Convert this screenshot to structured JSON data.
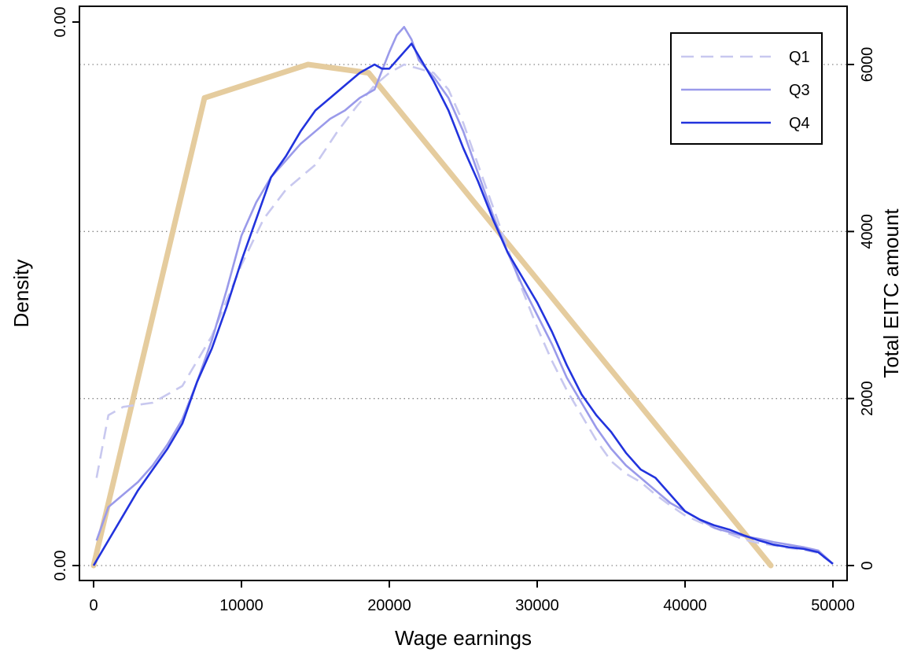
{
  "chart_data": {
    "type": "line",
    "title": "",
    "xlabel": "Wage earnings",
    "ylabel": "Density",
    "y2label": "Total EITC amount",
    "xlim": [
      -1000,
      51000
    ],
    "ylim_right": [
      -400,
      6500
    ],
    "x_ticks": [
      0,
      10000,
      20000,
      30000,
      40000,
      50000
    ],
    "x_tick_labels": [
      "0",
      "10000",
      "20000",
      "30000",
      "40000",
      "50000"
    ],
    "y_left_tick_labels": [
      "0.00",
      "0.00"
    ],
    "y_right_ticks": [
      0,
      2000,
      4000,
      6000
    ],
    "y_right_tick_labels": [
      "0",
      "2000",
      "4000",
      "6000"
    ],
    "gridlines_right": [
      0,
      2000,
      4000,
      6000
    ],
    "legend_position": "top-right",
    "eitc_schedule": {
      "color": "#e5cc9e",
      "x": [
        0,
        7500,
        14500,
        18600,
        45800
      ],
      "y": [
        0,
        5600,
        6000,
        5900,
        0
      ]
    },
    "series": [
      {
        "name": "Q1",
        "color": "#c8c8ef",
        "dash": "dashed",
        "x": [
          200,
          1000,
          2000,
          4000,
          6000,
          8000,
          10000,
          11500,
          13000,
          15000,
          16500,
          17800,
          19000,
          20000,
          21000,
          22000,
          23000,
          24000,
          25000,
          26000,
          27000,
          28000,
          29000,
          30000,
          31000,
          32000,
          33000,
          34000,
          35000,
          36000,
          37000,
          38000,
          39000,
          40000,
          41000,
          42000,
          43000,
          44000,
          45000,
          46000,
          47000,
          48000,
          49000,
          50000
        ],
        "y": [
          1050,
          1800,
          1900,
          1950,
          2150,
          2750,
          3600,
          4150,
          4500,
          4800,
          5200,
          5500,
          5750,
          5900,
          6000,
          5950,
          5900,
          5700,
          5300,
          4800,
          4300,
          3800,
          3300,
          2850,
          2450,
          2100,
          1800,
          1500,
          1250,
          1100,
          1000,
          850,
          720,
          600,
          520,
          450,
          380,
          310,
          270,
          240,
          210,
          190,
          150,
          20
        ]
      },
      {
        "name": "Q3",
        "color": "#9a9aea",
        "dash": "solid",
        "x": [
          200,
          1000,
          2000,
          3000,
          4000,
          5000,
          6000,
          7000,
          8000,
          9000,
          10000,
          11000,
          12000,
          13000,
          14000,
          15000,
          16000,
          17000,
          18000,
          19000,
          20000,
          20500,
          21000,
          21500,
          22000,
          23000,
          24000,
          25000,
          26000,
          27000,
          28000,
          29000,
          30000,
          31000,
          32000,
          33000,
          34000,
          35000,
          36000,
          37000,
          38000,
          39000,
          40000,
          41000,
          42000,
          43000,
          44000,
          45000,
          46000,
          47000,
          48000,
          49000,
          50000
        ],
        "y": [
          300,
          700,
          850,
          1000,
          1200,
          1450,
          1750,
          2200,
          2700,
          3300,
          3950,
          4350,
          4650,
          4850,
          5050,
          5200,
          5350,
          5450,
          5600,
          5700,
          6150,
          6350,
          6450,
          6300,
          6050,
          5850,
          5600,
          5200,
          4700,
          4200,
          3750,
          3350,
          3000,
          2650,
          2250,
          1950,
          1650,
          1400,
          1200,
          1050,
          900,
          750,
          650,
          550,
          450,
          400,
          350,
          320,
          280,
          250,
          220,
          180,
          20
        ]
      },
      {
        "name": "Q4",
        "color": "#2233dd",
        "dash": "solid",
        "x": [
          0,
          1000,
          2000,
          3000,
          4000,
          5000,
          6000,
          7000,
          8000,
          9000,
          10000,
          11000,
          12000,
          13000,
          14000,
          15000,
          16000,
          17000,
          18000,
          19000,
          19500,
          20000,
          21000,
          21500,
          22000,
          23000,
          24000,
          25000,
          26000,
          27000,
          28000,
          29000,
          30000,
          31000,
          32000,
          33000,
          34000,
          35000,
          36000,
          37000,
          38000,
          39000,
          40000,
          41000,
          42000,
          43000,
          44000,
          45000,
          46000,
          47000,
          48000,
          49000,
          50000
        ],
        "y": [
          0,
          300,
          600,
          900,
          1150,
          1400,
          1700,
          2200,
          2600,
          3100,
          3650,
          4150,
          4650,
          4900,
          5200,
          5450,
          5600,
          5750,
          5900,
          6000,
          5950,
          5950,
          6150,
          6250,
          6100,
          5800,
          5450,
          5000,
          4600,
          4150,
          3750,
          3450,
          3150,
          2800,
          2400,
          2050,
          1800,
          1600,
          1350,
          1150,
          1050,
          850,
          650,
          550,
          480,
          430,
          360,
          300,
          250,
          220,
          200,
          160,
          20
        ]
      }
    ]
  }
}
